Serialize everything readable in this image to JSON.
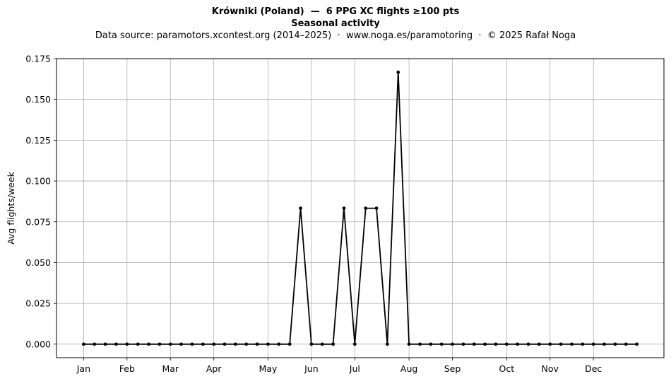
{
  "header": {
    "title_line1": "Krówniki (Poland)  —  6 PPG XC flights ≥100 pts",
    "title_line2": "Seasonal activity",
    "subtitle": "Data source: paramotors.xcontest.org (2014–2025)  ·  www.noga.es/paramotoring  ·  © 2025 Rafał Noga"
  },
  "chart_data": {
    "type": "line",
    "title": "Krówniki (Poland)  —  6 PPG XC flights ≥100 pts",
    "subtitle": "Seasonal activity",
    "xlabel": "",
    "ylabel": "Avg flights/week",
    "x_unit": "ISO week",
    "xlim": [
      -1.5,
      54.5
    ],
    "ylim": [
      -0.0083,
      0.175
    ],
    "yticks": [
      0.0,
      0.025,
      0.05,
      0.075,
      0.1,
      0.125,
      0.15,
      0.175
    ],
    "ytick_labels": [
      "0.000",
      "0.025",
      "0.050",
      "0.075",
      "0.100",
      "0.125",
      "0.150",
      "0.175"
    ],
    "xticks": [
      1,
      5,
      9,
      13,
      18,
      22,
      26,
      31,
      35,
      40,
      44,
      48
    ],
    "xtick_labels": [
      "Jan",
      "Feb",
      "Mar",
      "Apr",
      "May",
      "Jun",
      "Jul",
      "Aug",
      "Sep",
      "Oct",
      "Nov",
      "Dec"
    ],
    "grid": true,
    "line_color": "#000000",
    "series": [
      {
        "x": [
          1,
          2,
          3,
          4,
          5,
          6,
          7,
          8,
          9,
          10,
          11,
          12,
          13,
          14,
          15,
          16,
          17,
          18,
          19,
          20,
          21,
          22,
          23,
          24,
          25,
          26,
          27,
          28,
          29,
          30,
          31,
          32,
          33,
          34,
          35,
          36,
          37,
          38,
          39,
          40,
          41,
          42,
          43,
          44,
          45,
          46,
          47,
          48,
          49,
          50,
          51,
          52
        ],
        "values": [
          0,
          0,
          0,
          0,
          0,
          0,
          0,
          0,
          0,
          0,
          0,
          0,
          0,
          0,
          0,
          0,
          0,
          0,
          0,
          0,
          0.0833,
          0,
          0,
          0,
          0.0833,
          0,
          0.0833,
          0.0833,
          0,
          0.1667,
          0,
          0,
          0,
          0,
          0,
          0,
          0,
          0,
          0,
          0,
          0,
          0,
          0,
          0,
          0,
          0,
          0,
          0,
          0,
          0,
          0,
          0
        ]
      }
    ]
  }
}
